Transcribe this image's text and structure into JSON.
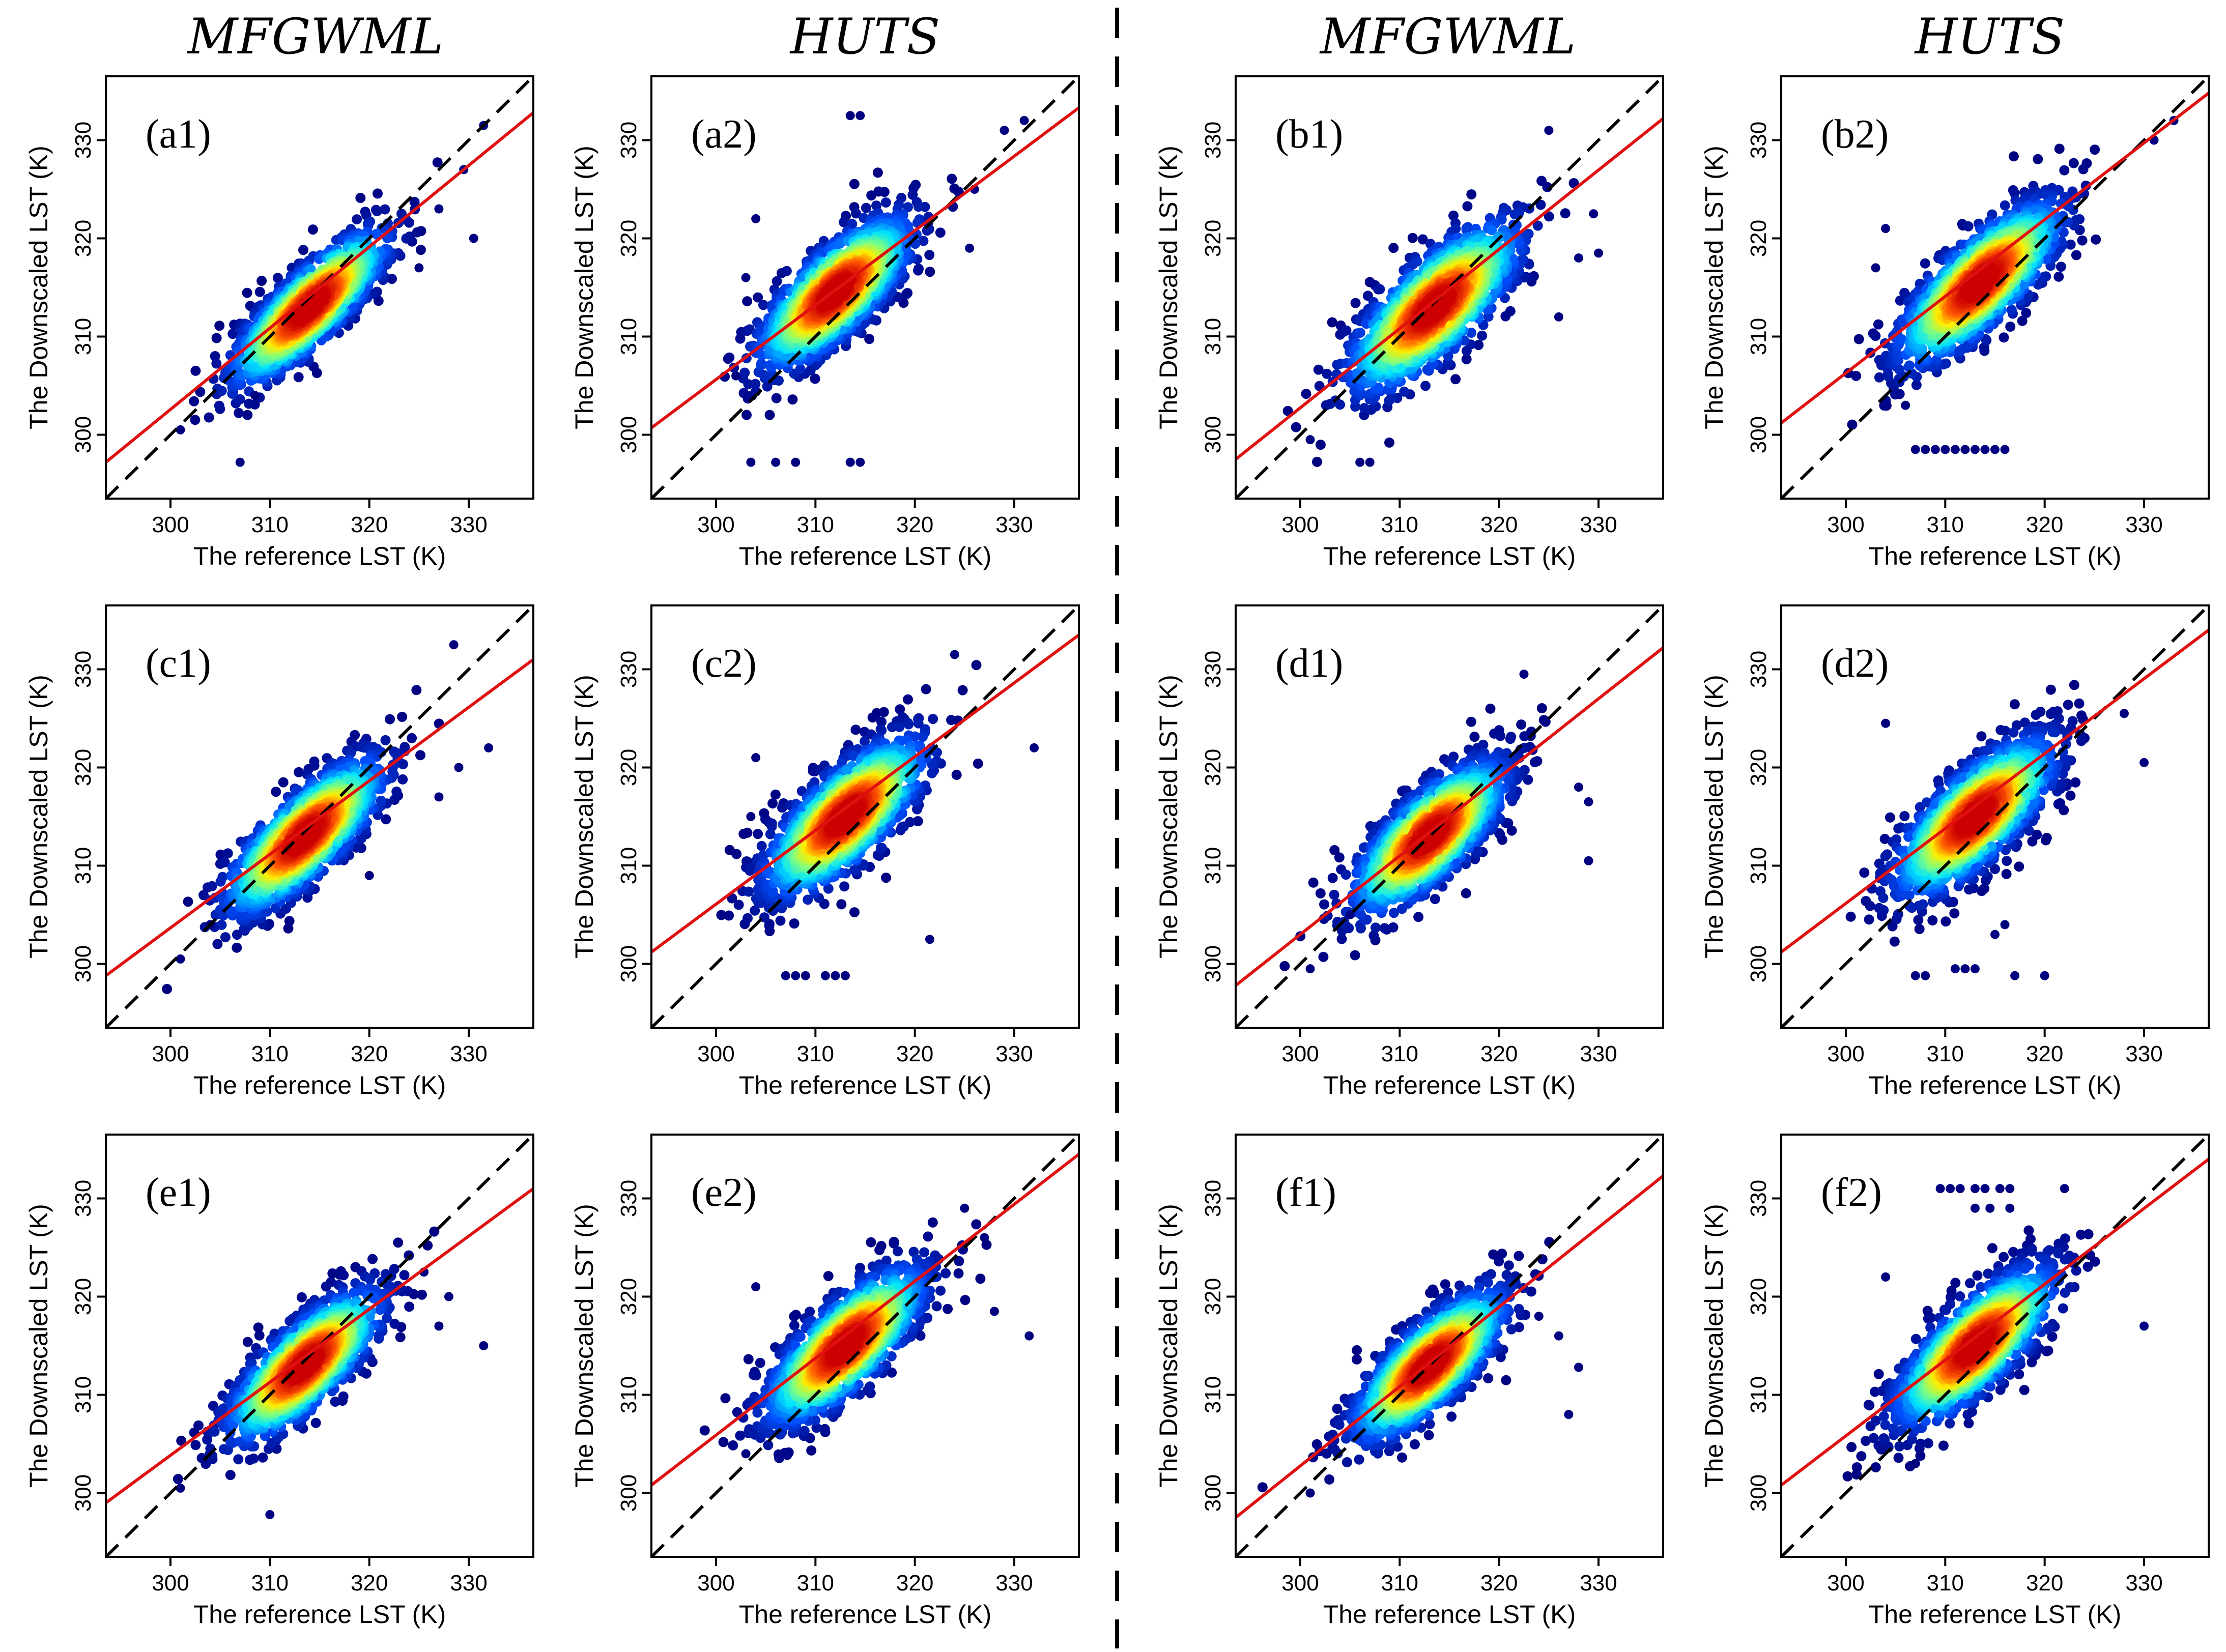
{
  "figure": {
    "column_titles": [
      "MFGWML",
      "HUTS",
      "MFGWML",
      "HUTS"
    ],
    "divider": "dashed"
  },
  "chart_data": [
    {
      "id": "a1",
      "type": "scatter",
      "label": "(a1)",
      "method": "MFGWML",
      "title": "",
      "xlabel": "The reference LST (K)",
      "ylabel": "The Downscaled LST (K)",
      "xlim": [
        293.5,
        336.5
      ],
      "ylim": [
        293.5,
        336.5
      ],
      "xticks": [
        300,
        310,
        320,
        330
      ],
      "yticks": [
        300,
        310,
        320,
        330
      ],
      "one_to_one_line": {
        "style": "dashed",
        "color": "#000000"
      },
      "fit_line": {
        "color": "#e01010",
        "x": [
          293.5,
          336.5
        ],
        "y": [
          297.2,
          332.8
        ]
      },
      "density_cloud": {
        "center": [
          314,
          313
        ],
        "sd_along": 5.2,
        "sd_across": 1.6
      },
      "outliers": [
        [
          307,
          297.2
        ],
        [
          331.5,
          331.5
        ],
        [
          329.5,
          327
        ],
        [
          330.5,
          320
        ],
        [
          325,
          317
        ],
        [
          308.5,
          304
        ],
        [
          301,
          300.5
        ],
        [
          327,
          323
        ]
      ],
      "colorscale": [
        "#00007f",
        "#0050ff",
        "#00e5ff",
        "#7fff7f",
        "#ffee00",
        "#ff5500",
        "#cc0000"
      ]
    },
    {
      "id": "a2",
      "type": "scatter",
      "label": "(a2)",
      "method": "HUTS",
      "title": "",
      "xlabel": "The reference LST (K)",
      "ylabel": "The Downscaled LST (K)",
      "xlim": [
        293.5,
        336.5
      ],
      "ylim": [
        293.5,
        336.5
      ],
      "xticks": [
        300,
        310,
        320,
        330
      ],
      "yticks": [
        300,
        310,
        320,
        330
      ],
      "one_to_one_line": {
        "style": "dashed",
        "color": "#000000"
      },
      "fit_line": {
        "color": "#e01010",
        "x": [
          293.5,
          336.5
        ],
        "y": [
          300.7,
          333.3
        ]
      },
      "density_cloud": {
        "center": [
          312,
          314.5
        ],
        "sd_along": 5.0,
        "sd_across": 1.9
      },
      "outliers": [
        [
          303.5,
          297.2
        ],
        [
          306,
          297.2
        ],
        [
          308,
          297.2
        ],
        [
          313.5,
          297.2
        ],
        [
          314.5,
          297.2
        ],
        [
          313.5,
          332.5
        ],
        [
          314.5,
          332.5
        ],
        [
          331,
          332
        ],
        [
          329,
          331
        ],
        [
          304,
          322
        ],
        [
          303,
          316
        ],
        [
          302,
          306
        ],
        [
          326,
          325
        ],
        [
          325.5,
          319
        ]
      ],
      "colorscale": [
        "#00007f",
        "#0050ff",
        "#00e5ff",
        "#7fff7f",
        "#ffee00",
        "#ff5500",
        "#cc0000"
      ]
    },
    {
      "id": "b1",
      "type": "scatter",
      "label": "(b1)",
      "method": "MFGWML",
      "title": "",
      "xlabel": "The reference LST (K)",
      "ylabel": "The Downscaled LST (K)",
      "xlim": [
        293.5,
        336.5
      ],
      "ylim": [
        293.5,
        336.5
      ],
      "xticks": [
        300,
        310,
        320,
        330
      ],
      "yticks": [
        300,
        310,
        320,
        330
      ],
      "one_to_one_line": {
        "style": "dashed",
        "color": "#000000"
      },
      "fit_line": {
        "color": "#e01010",
        "x": [
          293.5,
          336.5
        ],
        "y": [
          297.5,
          332.2
        ]
      },
      "density_cloud": {
        "center": [
          313.5,
          313
        ],
        "sd_along": 5.6,
        "sd_across": 2.1
      },
      "outliers": [
        [
          306,
          297.2
        ],
        [
          307,
          297.2
        ],
        [
          325,
          331
        ],
        [
          329.5,
          322.5
        ],
        [
          328,
          318
        ],
        [
          330,
          318.5
        ],
        [
          301,
          299.5
        ],
        [
          326,
          312
        ]
      ],
      "colorscale": [
        "#00007f",
        "#0050ff",
        "#00e5ff",
        "#7fff7f",
        "#ffee00",
        "#ff5500",
        "#cc0000"
      ]
    },
    {
      "id": "b2",
      "type": "scatter",
      "label": "(b2)",
      "method": "HUTS",
      "title": "",
      "xlabel": "The reference LST (K)",
      "ylabel": "The Downscaled LST (K)",
      "xlim": [
        293.5,
        336.5
      ],
      "ylim": [
        293.5,
        336.5
      ],
      "xticks": [
        300,
        310,
        320,
        330
      ],
      "yticks": [
        300,
        310,
        320,
        330
      ],
      "one_to_one_line": {
        "style": "dashed",
        "color": "#000000"
      },
      "fit_line": {
        "color": "#e01010",
        "x": [
          293.5,
          336.5
        ],
        "y": [
          301.2,
          334.8
        ]
      },
      "density_cloud": {
        "center": [
          313.5,
          315.5
        ],
        "sd_along": 5.4,
        "sd_across": 1.9
      },
      "outliers": [
        [
          307,
          298.5
        ],
        [
          308,
          298.5
        ],
        [
          309,
          298.5
        ],
        [
          310,
          298.5
        ],
        [
          311,
          298.5
        ],
        [
          312,
          298.5
        ],
        [
          313,
          298.5
        ],
        [
          314,
          298.5
        ],
        [
          315,
          298.5
        ],
        [
          316,
          298.5
        ],
        [
          333,
          332
        ],
        [
          331,
          330
        ],
        [
          304,
          321
        ],
        [
          303,
          317
        ],
        [
          306,
          303
        ]
      ],
      "colorscale": [
        "#00007f",
        "#0050ff",
        "#00e5ff",
        "#7fff7f",
        "#ffee00",
        "#ff5500",
        "#cc0000"
      ]
    },
    {
      "id": "c1",
      "type": "scatter",
      "label": "(c1)",
      "method": "MFGWML",
      "title": "",
      "xlabel": "The reference LST (K)",
      "ylabel": "The Downscaled LST (K)",
      "xlim": [
        293.5,
        336.5
      ],
      "ylim": [
        293.5,
        336.5
      ],
      "xticks": [
        300,
        310,
        320,
        330
      ],
      "yticks": [
        300,
        310,
        320,
        330
      ],
      "one_to_one_line": {
        "style": "dashed",
        "color": "#000000"
      },
      "fit_line": {
        "color": "#e01010",
        "x": [
          293.5,
          336.5
        ],
        "y": [
          298.8,
          331.0
        ]
      },
      "density_cloud": {
        "center": [
          313.5,
          313
        ],
        "sd_along": 5.2,
        "sd_across": 1.8
      },
      "outliers": [
        [
          328.5,
          332.5
        ],
        [
          332,
          322
        ],
        [
          329,
          320
        ],
        [
          327,
          317
        ],
        [
          301,
          300.5
        ],
        [
          304,
          304
        ],
        [
          320,
          309
        ]
      ],
      "colorscale": [
        "#00007f",
        "#0050ff",
        "#00e5ff",
        "#7fff7f",
        "#ffee00",
        "#ff5500",
        "#cc0000"
      ]
    },
    {
      "id": "c2",
      "type": "scatter",
      "label": "(c2)",
      "method": "HUTS",
      "title": "",
      "xlabel": "The reference LST (K)",
      "ylabel": "The Downscaled LST (K)",
      "xlim": [
        293.5,
        336.5
      ],
      "ylim": [
        293.5,
        336.5
      ],
      "xticks": [
        300,
        310,
        320,
        330
      ],
      "yticks": [
        300,
        310,
        320,
        330
      ],
      "one_to_one_line": {
        "style": "dashed",
        "color": "#000000"
      },
      "fit_line": {
        "color": "#e01010",
        "x": [
          293.5,
          336.5
        ],
        "y": [
          301.2,
          333.5
        ]
      },
      "density_cloud": {
        "center": [
          313,
          315
        ],
        "sd_along": 5.2,
        "sd_across": 2.0
      },
      "outliers": [
        [
          307,
          298.8
        ],
        [
          308,
          298.8
        ],
        [
          309,
          298.8
        ],
        [
          311,
          298.8
        ],
        [
          312,
          298.8
        ],
        [
          313,
          298.8
        ],
        [
          321.5,
          302.5
        ],
        [
          324,
          331.5
        ],
        [
          332,
          322
        ],
        [
          304,
          321
        ],
        [
          303.5,
          315
        ]
      ],
      "colorscale": [
        "#00007f",
        "#0050ff",
        "#00e5ff",
        "#7fff7f",
        "#ffee00",
        "#ff5500",
        "#cc0000"
      ]
    },
    {
      "id": "d1",
      "type": "scatter",
      "label": "(d1)",
      "method": "MFGWML",
      "title": "",
      "xlabel": "The reference LST (K)",
      "ylabel": "The Downscaled LST (K)",
      "xlim": [
        293.5,
        336.5
      ],
      "ylim": [
        293.5,
        336.5
      ],
      "xticks": [
        300,
        310,
        320,
        330
      ],
      "yticks": [
        300,
        310,
        320,
        330
      ],
      "one_to_one_line": {
        "style": "dashed",
        "color": "#000000"
      },
      "fit_line": {
        "color": "#e01010",
        "x": [
          293.5,
          336.5
        ],
        "y": [
          297.8,
          332.2
        ]
      },
      "density_cloud": {
        "center": [
          313,
          313
        ],
        "sd_along": 5.0,
        "sd_across": 1.9
      },
      "outliers": [
        [
          322.5,
          329.5
        ],
        [
          329,
          316.5
        ],
        [
          329,
          310.5
        ],
        [
          328,
          318
        ],
        [
          301,
          299.5
        ],
        [
          305,
          305
        ]
      ],
      "colorscale": [
        "#00007f",
        "#0050ff",
        "#00e5ff",
        "#7fff7f",
        "#ffee00",
        "#ff5500",
        "#cc0000"
      ]
    },
    {
      "id": "d2",
      "type": "scatter",
      "label": "(d2)",
      "method": "HUTS",
      "title": "",
      "xlabel": "The reference LST (K)",
      "ylabel": "The Downscaled LST (K)",
      "xlim": [
        293.5,
        336.5
      ],
      "ylim": [
        293.5,
        336.5
      ],
      "xticks": [
        300,
        310,
        320,
        330
      ],
      "yticks": [
        300,
        310,
        320,
        330
      ],
      "one_to_one_line": {
        "style": "dashed",
        "color": "#000000"
      },
      "fit_line": {
        "color": "#e01010",
        "x": [
          293.5,
          336.5
        ],
        "y": [
          301.2,
          334.0
        ]
      },
      "density_cloud": {
        "center": [
          313,
          315
        ],
        "sd_along": 5.2,
        "sd_across": 2.0
      },
      "outliers": [
        [
          307,
          298.8
        ],
        [
          308,
          298.8
        ],
        [
          311,
          299.5
        ],
        [
          312,
          299.5
        ],
        [
          313,
          299.5
        ],
        [
          317,
          298.8
        ],
        [
          320,
          298.8
        ],
        [
          315,
          303
        ],
        [
          316,
          304
        ],
        [
          304,
          324.5
        ],
        [
          330,
          320.5
        ],
        [
          328,
          325.5
        ]
      ],
      "colorscale": [
        "#00007f",
        "#0050ff",
        "#00e5ff",
        "#7fff7f",
        "#ffee00",
        "#ff5500",
        "#cc0000"
      ]
    },
    {
      "id": "e1",
      "type": "scatter",
      "label": "(e1)",
      "method": "MFGWML",
      "title": "",
      "xlabel": "The reference LST (K)",
      "ylabel": "The Downscaled LST (K)",
      "xlim": [
        293.5,
        336.5
      ],
      "ylim": [
        293.5,
        336.5
      ],
      "xticks": [
        300,
        310,
        320,
        330
      ],
      "yticks": [
        300,
        310,
        320,
        330
      ],
      "one_to_one_line": {
        "style": "dashed",
        "color": "#000000"
      },
      "fit_line": {
        "color": "#e01010",
        "x": [
          293.5,
          336.5
        ],
        "y": [
          299.0,
          331.0
        ]
      },
      "density_cloud": {
        "center": [
          313.5,
          313
        ],
        "sd_along": 5.0,
        "sd_across": 1.8
      },
      "outliers": [
        [
          310,
          297.8
        ],
        [
          331.5,
          315
        ],
        [
          328,
          320
        ],
        [
          327,
          317
        ],
        [
          325.5,
          322.5
        ],
        [
          301,
          300.5
        ]
      ],
      "colorscale": [
        "#00007f",
        "#0050ff",
        "#00e5ff",
        "#7fff7f",
        "#ffee00",
        "#ff5500",
        "#cc0000"
      ]
    },
    {
      "id": "e2",
      "type": "scatter",
      "label": "(e2)",
      "method": "HUTS",
      "title": "",
      "xlabel": "The reference LST (K)",
      "ylabel": "The Downscaled LST (K)",
      "xlim": [
        293.5,
        336.5
      ],
      "ylim": [
        293.5,
        336.5
      ],
      "xticks": [
        300,
        310,
        320,
        330
      ],
      "yticks": [
        300,
        310,
        320,
        330
      ],
      "one_to_one_line": {
        "style": "dashed",
        "color": "#000000"
      },
      "fit_line": {
        "color": "#e01010",
        "x": [
          293.5,
          336.5
        ],
        "y": [
          300.8,
          334.5
        ]
      },
      "density_cloud": {
        "center": [
          313,
          315
        ],
        "sd_along": 5.2,
        "sd_across": 1.9
      },
      "outliers": [
        [
          331.5,
          316
        ],
        [
          328,
          318.5
        ],
        [
          327,
          326
        ],
        [
          325,
          329
        ],
        [
          304,
          321
        ],
        [
          303,
          304
        ]
      ],
      "colorscale": [
        "#00007f",
        "#0050ff",
        "#00e5ff",
        "#7fff7f",
        "#ffee00",
        "#ff5500",
        "#cc0000"
      ]
    },
    {
      "id": "f1",
      "type": "scatter",
      "label": "(f1)",
      "method": "MFGWML",
      "title": "",
      "xlabel": "The reference LST (K)",
      "ylabel": "The Downscaled LST (K)",
      "xlim": [
        293.5,
        336.5
      ],
      "ylim": [
        293.5,
        336.5
      ],
      "xticks": [
        300,
        310,
        320,
        330
      ],
      "yticks": [
        300,
        310,
        320,
        330
      ],
      "one_to_one_line": {
        "style": "dashed",
        "color": "#000000"
      },
      "fit_line": {
        "color": "#e01010",
        "x": [
          293.5,
          336.5
        ],
        "y": [
          297.5,
          332.3
        ]
      },
      "density_cloud": {
        "center": [
          313,
          313
        ],
        "sd_along": 5.0,
        "sd_across": 1.8
      },
      "outliers": [
        [
          328,
          312.8
        ],
        [
          327,
          308
        ],
        [
          326,
          316
        ],
        [
          324,
          318
        ],
        [
          301,
          300
        ]
      ],
      "colorscale": [
        "#00007f",
        "#0050ff",
        "#00e5ff",
        "#7fff7f",
        "#ffee00",
        "#ff5500",
        "#cc0000"
      ]
    },
    {
      "id": "f2",
      "type": "scatter",
      "label": "(f2)",
      "method": "HUTS",
      "title": "",
      "xlabel": "The reference LST (K)",
      "ylabel": "The Downscaled LST (K)",
      "xlim": [
        293.5,
        336.5
      ],
      "ylim": [
        293.5,
        336.5
      ],
      "xticks": [
        300,
        310,
        320,
        330
      ],
      "yticks": [
        300,
        310,
        320,
        330
      ],
      "one_to_one_line": {
        "style": "dashed",
        "color": "#000000"
      },
      "fit_line": {
        "color": "#e01010",
        "x": [
          293.5,
          336.5
        ],
        "y": [
          300.8,
          334.0
        ]
      },
      "density_cloud": {
        "center": [
          313,
          315
        ],
        "sd_along": 5.2,
        "sd_across": 1.9
      },
      "outliers": [
        [
          309.5,
          331
        ],
        [
          310.5,
          331
        ],
        [
          311.5,
          331
        ],
        [
          313,
          331
        ],
        [
          314,
          331
        ],
        [
          315.5,
          331
        ],
        [
          316.5,
          331
        ],
        [
          322,
          331
        ],
        [
          313,
          329
        ],
        [
          314.5,
          329
        ],
        [
          316.5,
          329
        ],
        [
          330,
          317
        ],
        [
          304,
          322
        ],
        [
          307,
          303
        ]
      ],
      "colorscale": [
        "#00007f",
        "#0050ff",
        "#00e5ff",
        "#7fff7f",
        "#ffee00",
        "#ff5500",
        "#cc0000"
      ]
    }
  ]
}
